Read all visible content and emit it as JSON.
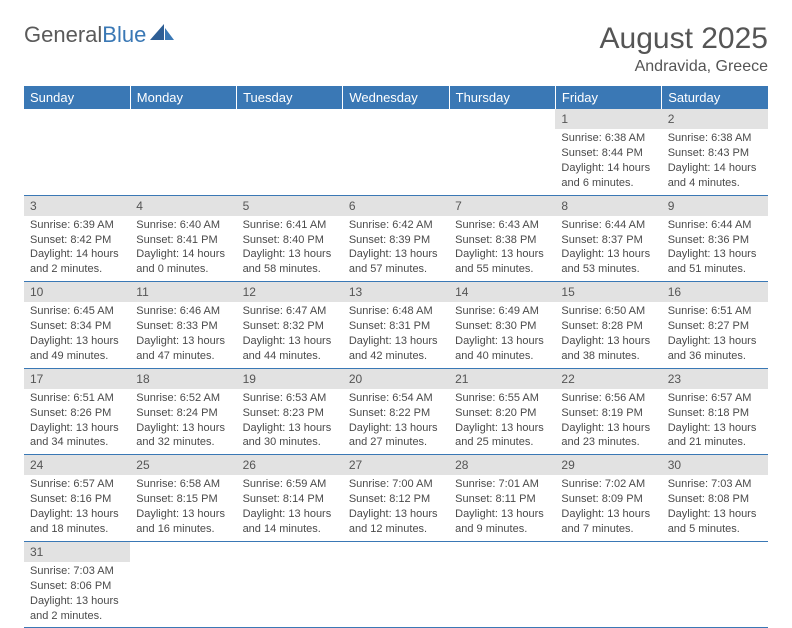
{
  "logo": {
    "part1": "General",
    "part2": "Blue"
  },
  "title": "August 2025",
  "location": "Andravida, Greece",
  "colors": {
    "header_bg": "#3a78b5",
    "header_text": "#ffffff",
    "daynum_bg": "#e2e2e2",
    "text": "#4a4a4a",
    "rule": "#3a78b5"
  },
  "weekdays": [
    "Sunday",
    "Monday",
    "Tuesday",
    "Wednesday",
    "Thursday",
    "Friday",
    "Saturday"
  ],
  "weeks": [
    [
      null,
      null,
      null,
      null,
      null,
      {
        "n": "1",
        "sr": "Sunrise: 6:38 AM",
        "ss": "Sunset: 8:44 PM",
        "d1": "Daylight: 14 hours",
        "d2": "and 6 minutes."
      },
      {
        "n": "2",
        "sr": "Sunrise: 6:38 AM",
        "ss": "Sunset: 8:43 PM",
        "d1": "Daylight: 14 hours",
        "d2": "and 4 minutes."
      }
    ],
    [
      {
        "n": "3",
        "sr": "Sunrise: 6:39 AM",
        "ss": "Sunset: 8:42 PM",
        "d1": "Daylight: 14 hours",
        "d2": "and 2 minutes."
      },
      {
        "n": "4",
        "sr": "Sunrise: 6:40 AM",
        "ss": "Sunset: 8:41 PM",
        "d1": "Daylight: 14 hours",
        "d2": "and 0 minutes."
      },
      {
        "n": "5",
        "sr": "Sunrise: 6:41 AM",
        "ss": "Sunset: 8:40 PM",
        "d1": "Daylight: 13 hours",
        "d2": "and 58 minutes."
      },
      {
        "n": "6",
        "sr": "Sunrise: 6:42 AM",
        "ss": "Sunset: 8:39 PM",
        "d1": "Daylight: 13 hours",
        "d2": "and 57 minutes."
      },
      {
        "n": "7",
        "sr": "Sunrise: 6:43 AM",
        "ss": "Sunset: 8:38 PM",
        "d1": "Daylight: 13 hours",
        "d2": "and 55 minutes."
      },
      {
        "n": "8",
        "sr": "Sunrise: 6:44 AM",
        "ss": "Sunset: 8:37 PM",
        "d1": "Daylight: 13 hours",
        "d2": "and 53 minutes."
      },
      {
        "n": "9",
        "sr": "Sunrise: 6:44 AM",
        "ss": "Sunset: 8:36 PM",
        "d1": "Daylight: 13 hours",
        "d2": "and 51 minutes."
      }
    ],
    [
      {
        "n": "10",
        "sr": "Sunrise: 6:45 AM",
        "ss": "Sunset: 8:34 PM",
        "d1": "Daylight: 13 hours",
        "d2": "and 49 minutes."
      },
      {
        "n": "11",
        "sr": "Sunrise: 6:46 AM",
        "ss": "Sunset: 8:33 PM",
        "d1": "Daylight: 13 hours",
        "d2": "and 47 minutes."
      },
      {
        "n": "12",
        "sr": "Sunrise: 6:47 AM",
        "ss": "Sunset: 8:32 PM",
        "d1": "Daylight: 13 hours",
        "d2": "and 44 minutes."
      },
      {
        "n": "13",
        "sr": "Sunrise: 6:48 AM",
        "ss": "Sunset: 8:31 PM",
        "d1": "Daylight: 13 hours",
        "d2": "and 42 minutes."
      },
      {
        "n": "14",
        "sr": "Sunrise: 6:49 AM",
        "ss": "Sunset: 8:30 PM",
        "d1": "Daylight: 13 hours",
        "d2": "and 40 minutes."
      },
      {
        "n": "15",
        "sr": "Sunrise: 6:50 AM",
        "ss": "Sunset: 8:28 PM",
        "d1": "Daylight: 13 hours",
        "d2": "and 38 minutes."
      },
      {
        "n": "16",
        "sr": "Sunrise: 6:51 AM",
        "ss": "Sunset: 8:27 PM",
        "d1": "Daylight: 13 hours",
        "d2": "and 36 minutes."
      }
    ],
    [
      {
        "n": "17",
        "sr": "Sunrise: 6:51 AM",
        "ss": "Sunset: 8:26 PM",
        "d1": "Daylight: 13 hours",
        "d2": "and 34 minutes."
      },
      {
        "n": "18",
        "sr": "Sunrise: 6:52 AM",
        "ss": "Sunset: 8:24 PM",
        "d1": "Daylight: 13 hours",
        "d2": "and 32 minutes."
      },
      {
        "n": "19",
        "sr": "Sunrise: 6:53 AM",
        "ss": "Sunset: 8:23 PM",
        "d1": "Daylight: 13 hours",
        "d2": "and 30 minutes."
      },
      {
        "n": "20",
        "sr": "Sunrise: 6:54 AM",
        "ss": "Sunset: 8:22 PM",
        "d1": "Daylight: 13 hours",
        "d2": "and 27 minutes."
      },
      {
        "n": "21",
        "sr": "Sunrise: 6:55 AM",
        "ss": "Sunset: 8:20 PM",
        "d1": "Daylight: 13 hours",
        "d2": "and 25 minutes."
      },
      {
        "n": "22",
        "sr": "Sunrise: 6:56 AM",
        "ss": "Sunset: 8:19 PM",
        "d1": "Daylight: 13 hours",
        "d2": "and 23 minutes."
      },
      {
        "n": "23",
        "sr": "Sunrise: 6:57 AM",
        "ss": "Sunset: 8:18 PM",
        "d1": "Daylight: 13 hours",
        "d2": "and 21 minutes."
      }
    ],
    [
      {
        "n": "24",
        "sr": "Sunrise: 6:57 AM",
        "ss": "Sunset: 8:16 PM",
        "d1": "Daylight: 13 hours",
        "d2": "and 18 minutes."
      },
      {
        "n": "25",
        "sr": "Sunrise: 6:58 AM",
        "ss": "Sunset: 8:15 PM",
        "d1": "Daylight: 13 hours",
        "d2": "and 16 minutes."
      },
      {
        "n": "26",
        "sr": "Sunrise: 6:59 AM",
        "ss": "Sunset: 8:14 PM",
        "d1": "Daylight: 13 hours",
        "d2": "and 14 minutes."
      },
      {
        "n": "27",
        "sr": "Sunrise: 7:00 AM",
        "ss": "Sunset: 8:12 PM",
        "d1": "Daylight: 13 hours",
        "d2": "and 12 minutes."
      },
      {
        "n": "28",
        "sr": "Sunrise: 7:01 AM",
        "ss": "Sunset: 8:11 PM",
        "d1": "Daylight: 13 hours",
        "d2": "and 9 minutes."
      },
      {
        "n": "29",
        "sr": "Sunrise: 7:02 AM",
        "ss": "Sunset: 8:09 PM",
        "d1": "Daylight: 13 hours",
        "d2": "and 7 minutes."
      },
      {
        "n": "30",
        "sr": "Sunrise: 7:03 AM",
        "ss": "Sunset: 8:08 PM",
        "d1": "Daylight: 13 hours",
        "d2": "and 5 minutes."
      }
    ],
    [
      {
        "n": "31",
        "sr": "Sunrise: 7:03 AM",
        "ss": "Sunset: 8:06 PM",
        "d1": "Daylight: 13 hours",
        "d2": "and 2 minutes."
      },
      null,
      null,
      null,
      null,
      null,
      null
    ]
  ]
}
